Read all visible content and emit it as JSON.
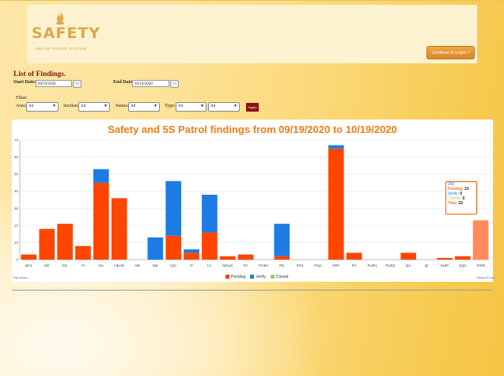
{
  "header": {
    "logo_title": "SAFETY",
    "logo_subtitle": "AND 5S PATROL SYSTEM",
    "continue_button": "Continue to Login >"
  },
  "page": {
    "title": "List of Findings."
  },
  "filters": {
    "start_date_label": "Start Date:",
    "start_date_value": "09/19/2020",
    "end_date_label": "End Date:",
    "end_date_value": "10/19/2020",
    "date_button": "...",
    "filter_label": "Filter:",
    "area_label": "Area:",
    "area_value": "All",
    "section_label": "Section:",
    "section_value": "All",
    "status_label": "Status:",
    "status_value": "All",
    "type_label": "Type:",
    "type_value": "All",
    "extra_value": "All",
    "apply_button": "Apply"
  },
  "colors": {
    "pending": "#ff4500",
    "verify": "#1e7be6",
    "closed": "#9bd35a",
    "title": "#f07c14",
    "highlight": "#ff8a5c"
  },
  "chart_data": {
    "type": "bar",
    "stacked": true,
    "title": "Safety and 5S Patrol findings from 09/19/2020 to 10/19/2020",
    "categories": [
      "BFS",
      "DE",
      "EE",
      "FI",
      "GA",
      "HEAD",
      "HR",
      "INK",
      "IQC",
      "IT",
      "LC",
      "MOLD",
      "PC",
      "PCBA",
      "PE",
      "PFS",
      "PQA",
      "PRT",
      "PT",
      "PUR1",
      "PUR2",
      "QA",
      "QI",
      "SHIP",
      "SQC",
      "TAPE"
    ],
    "series": [
      {
        "name": "Pending",
        "values": [
          3,
          18,
          21,
          8,
          45,
          36,
          0,
          0,
          14,
          4,
          16,
          2,
          3,
          0,
          2,
          0,
          0,
          65,
          4,
          0,
          0,
          4,
          0,
          1,
          2,
          23
        ]
      },
      {
        "name": "Verify",
        "values": [
          0,
          0,
          0,
          0,
          8,
          0,
          0,
          13,
          32,
          2,
          22,
          0,
          0,
          0,
          19,
          0,
          0,
          2,
          0,
          0,
          0,
          0,
          0,
          0,
          0,
          0
        ]
      },
      {
        "name": "Closed",
        "values": [
          0,
          0,
          0,
          0,
          0,
          0,
          0,
          0,
          0,
          0,
          0,
          0,
          0,
          0,
          0,
          0,
          0,
          0,
          0,
          0,
          0,
          0,
          0,
          0,
          0,
          0
        ]
      }
    ],
    "ylim": [
      0,
      70
    ],
    "yticks": [
      0,
      10,
      20,
      30,
      40,
      50,
      60,
      70
    ],
    "grid": true,
    "legend_position": "bottom",
    "highlighted_category": "TAPE",
    "tooltip": {
      "category": "260",
      "pending_label": "Pending:",
      "pending_value": "23",
      "verify_label": "Verify:",
      "verify_value": "0",
      "closed_label": "Closed:",
      "closed_value": "0",
      "total_label": "Total:",
      "total_value": "23"
    },
    "footer_left": "Trial Version",
    "footer_right": "CanvasJS.com"
  }
}
